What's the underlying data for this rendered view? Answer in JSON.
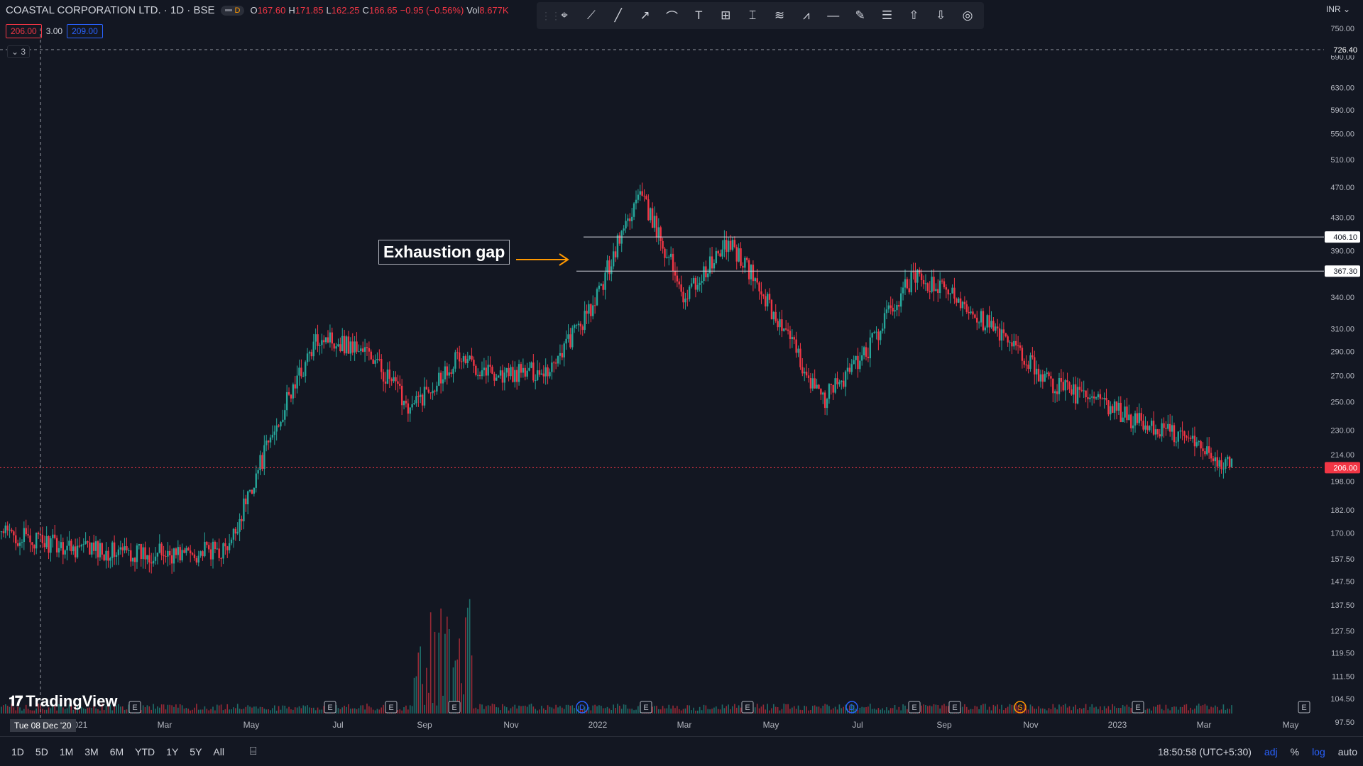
{
  "header": {
    "symbol": "COASTAL CORPORATION LTD. · 1D · BSE",
    "pill_letter": "D",
    "ohlc": [
      {
        "k": "O",
        "v": "167.60"
      },
      {
        "k": "H",
        "v": "171.85"
      },
      {
        "k": "L",
        "v": "162.25"
      },
      {
        "k": "C",
        "v": "166.65"
      },
      {
        "k": "",
        "v": "−0.95 (−0.56%)"
      },
      {
        "k": "Vol",
        "v": "8.677K"
      }
    ],
    "bid": "206.00",
    "spread": "3.00",
    "ask": "209.00",
    "indicators_count": "3",
    "currency": "INR"
  },
  "toolbar": {
    "icons": [
      "cursor-icon",
      "trend-line-icon",
      "ray-icon",
      "arrow-line-icon",
      "curve-icon",
      "text-icon",
      "grid-box-icon",
      "price-range-icon",
      "pattern-icon",
      "zigzag-icon",
      "horizontal-line-icon",
      "brush-icon",
      "list-icon",
      "arrow-up-icon",
      "arrow-down-icon",
      "target-icon"
    ]
  },
  "annotation": {
    "label": "Exhaustion gap"
  },
  "bottom": {
    "ranges": [
      "1D",
      "5D",
      "1M",
      "3M",
      "6M",
      "YTD",
      "1Y",
      "5Y",
      "All"
    ],
    "clock": "18:50:58 (UTC+5:30)",
    "adj": "adj",
    "pct": "%",
    "log": "log",
    "auto": "auto"
  },
  "crosshair_date": "Tue 08 Dec '20",
  "brand": "TradingView",
  "colors": {
    "up": "#26a69a",
    "down": "#f23645",
    "bg": "#131722",
    "line": "#d1d4dc",
    "accent": "#2962ff"
  },
  "chart_data": {
    "type": "candlestick",
    "scale": "log",
    "currency": "INR",
    "ylim": [
      97.5,
      750
    ],
    "y_ticks": [
      750,
      690,
      630,
      590,
      550,
      510,
      470,
      430,
      390,
      340,
      310,
      290,
      270,
      250,
      230,
      214,
      198,
      182,
      170,
      157.5,
      147.5,
      137.5,
      127.5,
      119.5,
      111.5,
      104.5,
      97.5
    ],
    "x_ticks": [
      "2021",
      "Mar",
      "May",
      "Jul",
      "Sep",
      "Nov",
      "2022",
      "Mar",
      "May",
      "Jul",
      "Sep",
      "Nov",
      "2023",
      "Mar",
      "May"
    ],
    "price_labels": {
      "top": "726.40",
      "resistance_1": "406.10",
      "resistance_2": "367.30",
      "last": "206.00"
    },
    "horizontal_lines": [
      406.1,
      367.3
    ],
    "last_price": 206.0,
    "close_path": [
      [
        "Dec 2020",
        170
      ],
      [
        "Jan 2021",
        165
      ],
      [
        "Feb 2021",
        162
      ],
      [
        "Mar 2021",
        160
      ],
      [
        "Apr 2021",
        160
      ],
      [
        "May 2021",
        162
      ],
      [
        "Jun 2021",
        230
      ],
      [
        "Jul 2021",
        305
      ],
      [
        "Aug 2021",
        290
      ],
      [
        "Sep 2021",
        245
      ],
      [
        "Oct 2021",
        285
      ],
      [
        "Nov 2021",
        270
      ],
      [
        "Dec 2021",
        275
      ],
      [
        "Jan 2022",
        330
      ],
      [
        "Feb 2022",
        460
      ],
      [
        "Mar 2022",
        340
      ],
      [
        "Apr 2022",
        400
      ],
      [
        "May 2022",
        320
      ],
      [
        "Jun 2022",
        250
      ],
      [
        "Jul 2022",
        290
      ],
      [
        "Aug 2022",
        360
      ],
      [
        "Sep 2022",
        340
      ],
      [
        "Oct 2022",
        300
      ],
      [
        "Nov 2022",
        265
      ],
      [
        "Dec 2022",
        250
      ],
      [
        "Jan 2023",
        235
      ],
      [
        "Feb 2023",
        225
      ],
      [
        "Mar 2023",
        206
      ]
    ],
    "markers": [
      {
        "date": "Jan 2021",
        "label": "E"
      },
      {
        "date": "Mar 2021",
        "label": "E"
      },
      {
        "date": "Jul 2021",
        "label": "E"
      },
      {
        "date": "Aug 2021",
        "label": "E"
      },
      {
        "date": "Oct 2021",
        "label": "D"
      },
      {
        "date": "Nov 2021",
        "label": "E"
      },
      {
        "date": "Feb 2022",
        "label": "E"
      },
      {
        "date": "May 2022",
        "label": "D"
      },
      {
        "date": "May 2022b",
        "label": "E"
      },
      {
        "date": "Aug 2022",
        "label": "E"
      },
      {
        "date": "Sep 2022",
        "label": "S"
      },
      {
        "date": "Nov 2022",
        "label": "E"
      },
      {
        "date": "Feb 2023",
        "label": "E"
      }
    ]
  }
}
